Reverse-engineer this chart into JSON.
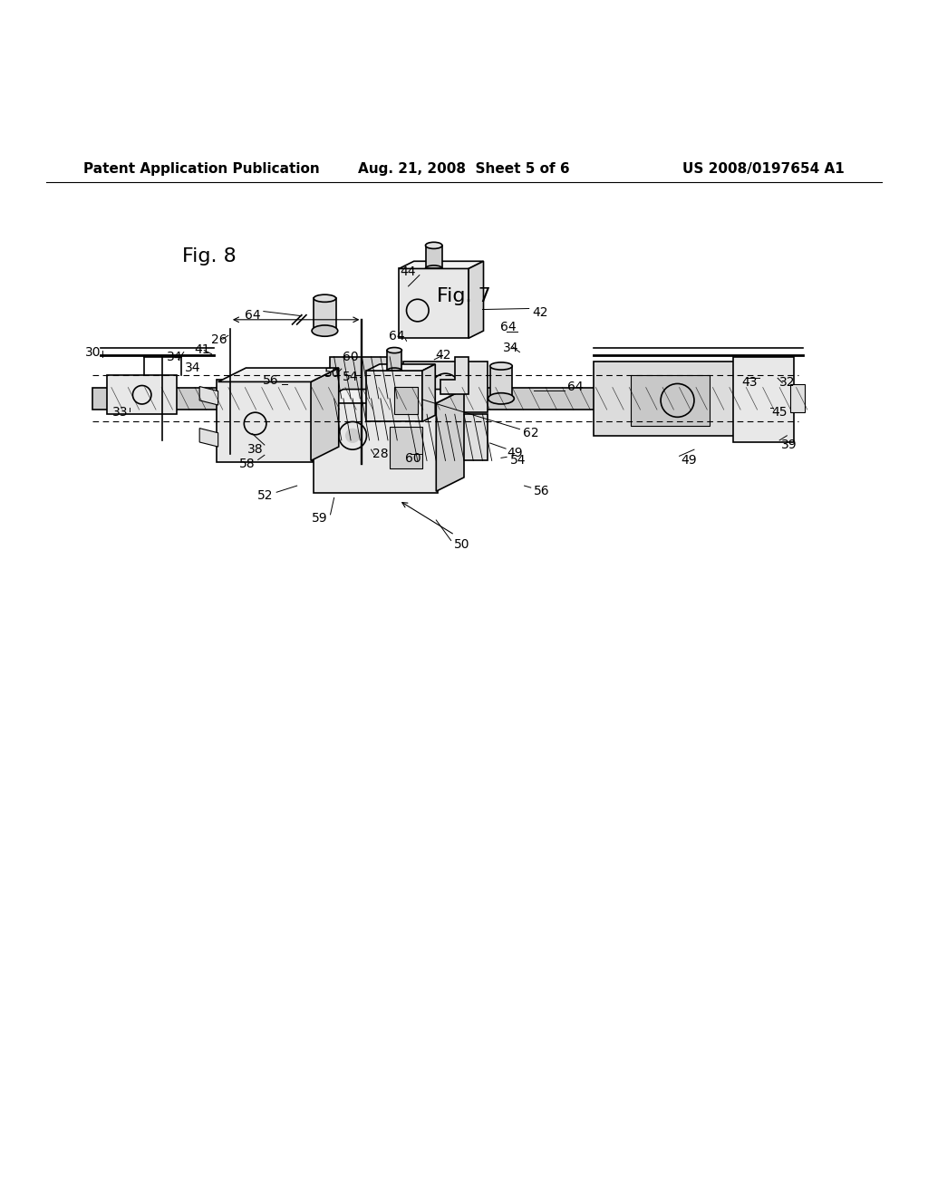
{
  "background_color": "#ffffff",
  "header_left": "Patent Application Publication",
  "header_center": "Aug. 21, 2008  Sheet 5 of 6",
  "header_right": "US 2008/0197654 A1",
  "fig7_label": "Fig. 7",
  "fig8_label": "Fig. 8",
  "text_color": "#000000",
  "line_color": "#000000",
  "header_fontsize": 11,
  "fig_label_fontsize": 16,
  "annotation_fontsize": 10
}
